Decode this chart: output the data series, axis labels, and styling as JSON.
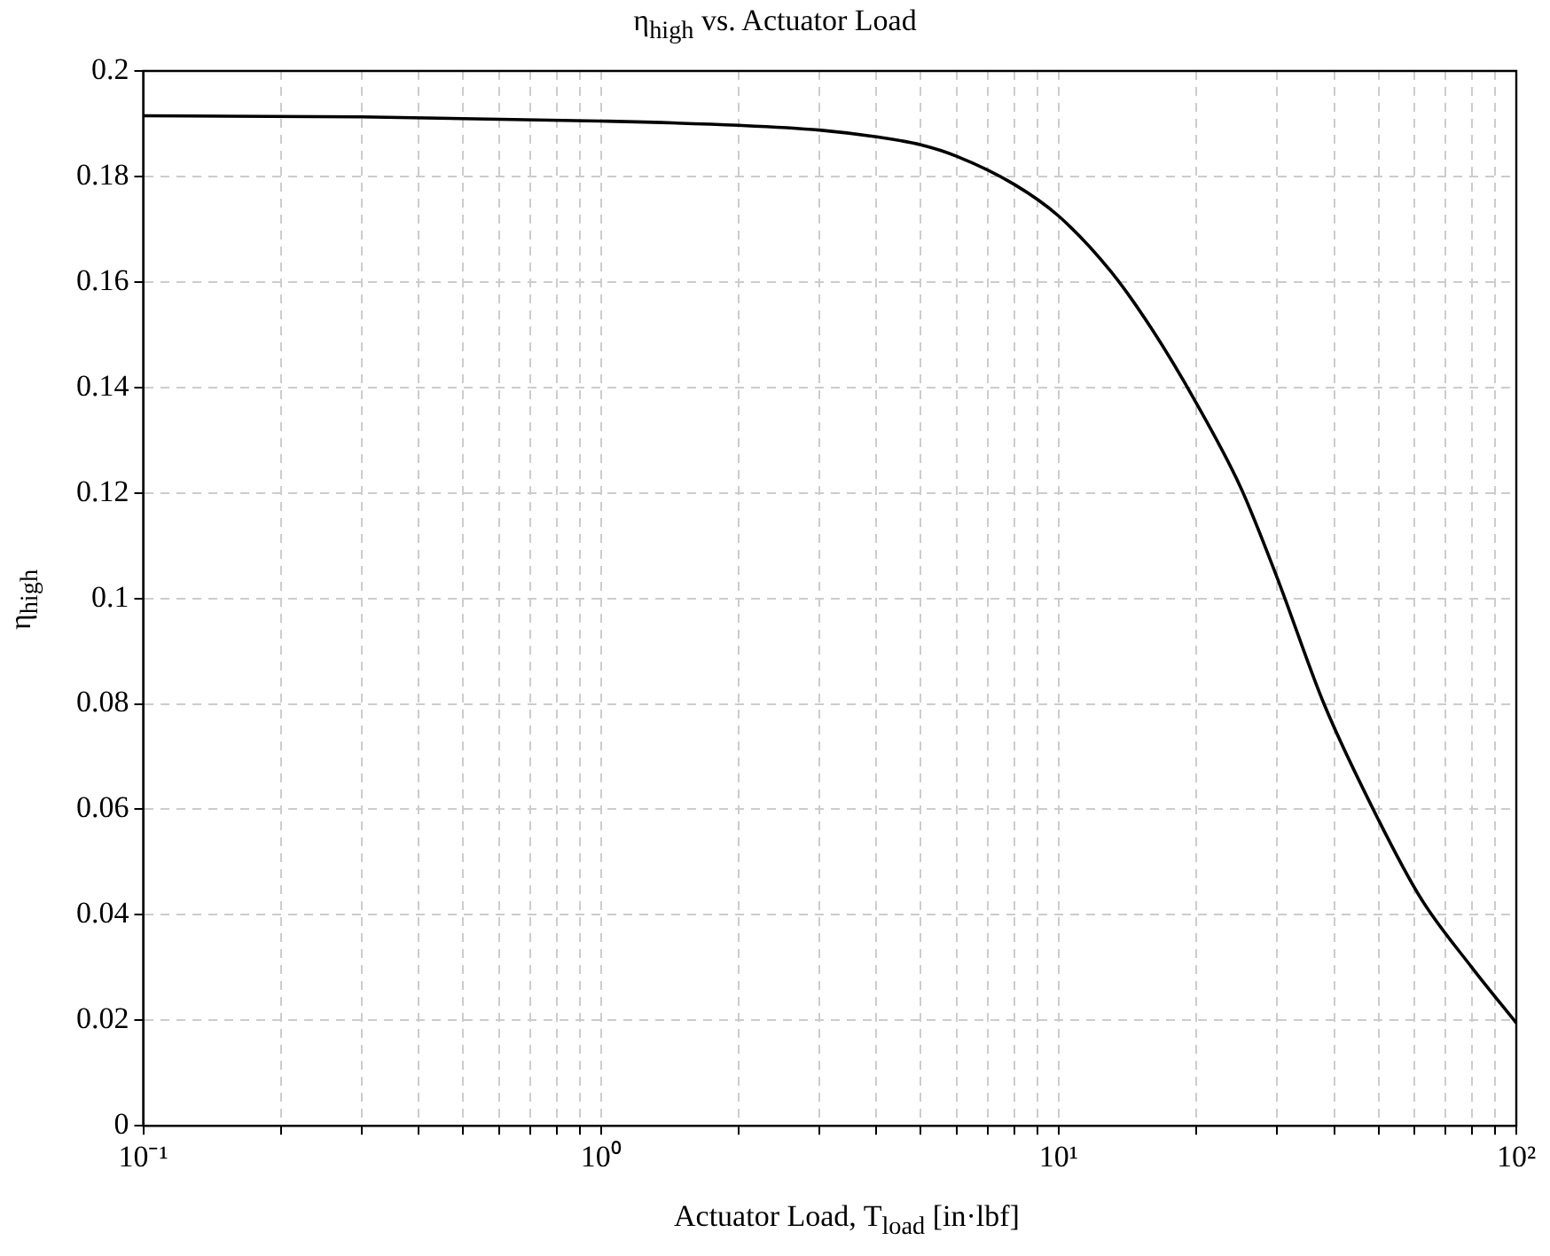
{
  "chart_data": {
    "type": "line",
    "title": "η$_{high}$ vs. Actuator Load",
    "xlabel": "Actuator Load, T$_{load}$ [in·lbf]",
    "ylabel": "η$_{high}$",
    "x": [
      0.1,
      0.3,
      1,
      2,
      3,
      4,
      5,
      6,
      8,
      10,
      13,
      16,
      20,
      25,
      30,
      38,
      50,
      62,
      80,
      100
    ],
    "series": [
      {
        "color": "#000000",
        "values": [
          0.1915,
          0.1913,
          0.1905,
          0.1897,
          0.1888,
          0.1875,
          0.186,
          0.1838,
          0.1785,
          0.1725,
          0.162,
          0.151,
          0.137,
          0.121,
          0.104,
          0.08,
          0.058,
          0.043,
          0.03,
          0.0195
        ]
      }
    ],
    "log": "x",
    "xlim": [
      0.1,
      100
    ],
    "xticks": [
      {
        "value": 0.1,
        "label": "10⁻¹"
      },
      {
        "value": 0.2,
        "label": null
      },
      {
        "value": 0.3,
        "label": null
      },
      {
        "value": 0.4,
        "label": null
      },
      {
        "value": 0.5,
        "label": null
      },
      {
        "value": 0.6,
        "label": null
      },
      {
        "value": 0.7,
        "label": null
      },
      {
        "value": 0.8,
        "label": null
      },
      {
        "value": 0.9,
        "label": null
      },
      {
        "value": 1,
        "label": "10⁰"
      },
      {
        "value": 2,
        "label": null
      },
      {
        "value": 3,
        "label": null
      },
      {
        "value": 4,
        "label": null
      },
      {
        "value": 5,
        "label": null
      },
      {
        "value": 6,
        "label": null
      },
      {
        "value": 7,
        "label": null
      },
      {
        "value": 8,
        "label": null
      },
      {
        "value": 9,
        "label": null
      },
      {
        "value": 10,
        "label": "10¹"
      },
      {
        "value": 20,
        "label": null
      },
      {
        "value": 30,
        "label": null
      },
      {
        "value": 40,
        "label": null
      },
      {
        "value": 50,
        "label": null
      },
      {
        "value": 60,
        "label": null
      },
      {
        "value": 70,
        "label": null
      },
      {
        "value": 80,
        "label": null
      },
      {
        "value": 90,
        "label": null
      },
      {
        "value": 100,
        "label": "10²"
      }
    ],
    "ylim": [
      0,
      0.2
    ],
    "yticks": [
      0,
      0.02,
      0.04,
      0.06,
      0.08,
      0.1,
      0.12,
      0.14,
      0.16,
      0.18,
      0.2
    ],
    "grid": true,
    "legend": false,
    "marker": "none",
    "line_style": "solid"
  }
}
